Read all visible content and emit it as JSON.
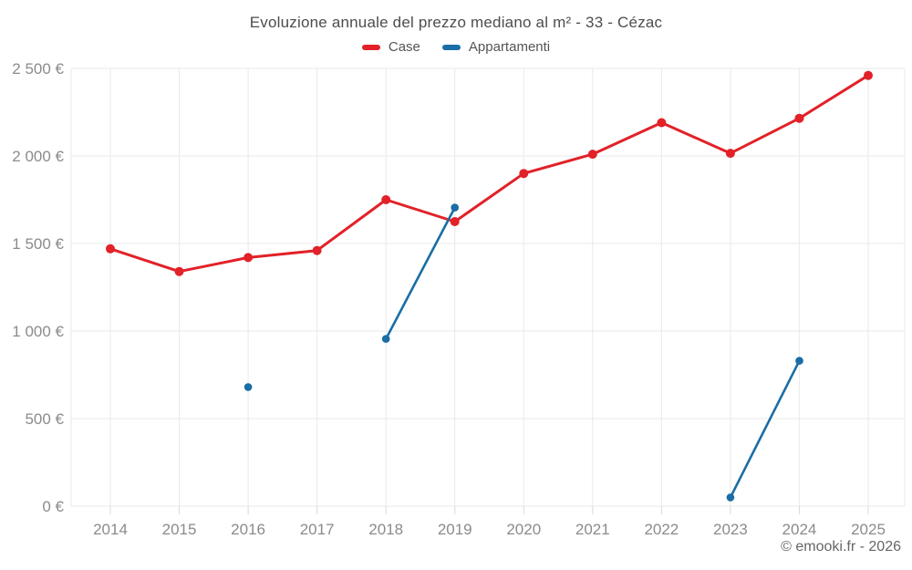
{
  "header": {
    "title": "Evoluzione annuale del prezzo mediano al m² - 33 - Cézac"
  },
  "footer": {
    "copyright": "© emooki.fr - 2026"
  },
  "chart_data": {
    "type": "line",
    "title": "Evoluzione annuale del prezzo mediano al m² - 33 - Cézac",
    "x_labels": [
      "2014",
      "2015",
      "2016",
      "2017",
      "2018",
      "2019",
      "2020",
      "2021",
      "2022",
      "2023",
      "2024",
      "2025"
    ],
    "y_ticks": [
      0,
      500,
      1000,
      1500,
      2000,
      2500
    ],
    "y_tick_labels": [
      "0 €",
      "500 €",
      "1 000 €",
      "1 500 €",
      "2 000 €",
      "2 500 €"
    ],
    "ylim": [
      0,
      2500
    ],
    "ylabel": "",
    "xlabel": "",
    "grid": true,
    "legend_position": "top",
    "currency": "€",
    "series": [
      {
        "name": "Case",
        "color": "#e22128",
        "values": [
          1470,
          1340,
          1420,
          1460,
          1750,
          1625,
          1900,
          2010,
          2190,
          2015,
          2215,
          2460
        ]
      },
      {
        "name": "Appartamenti",
        "color": "#1a6da6",
        "values": [
          null,
          null,
          680,
          null,
          955,
          1705,
          null,
          null,
          null,
          50,
          830,
          null
        ]
      }
    ]
  }
}
